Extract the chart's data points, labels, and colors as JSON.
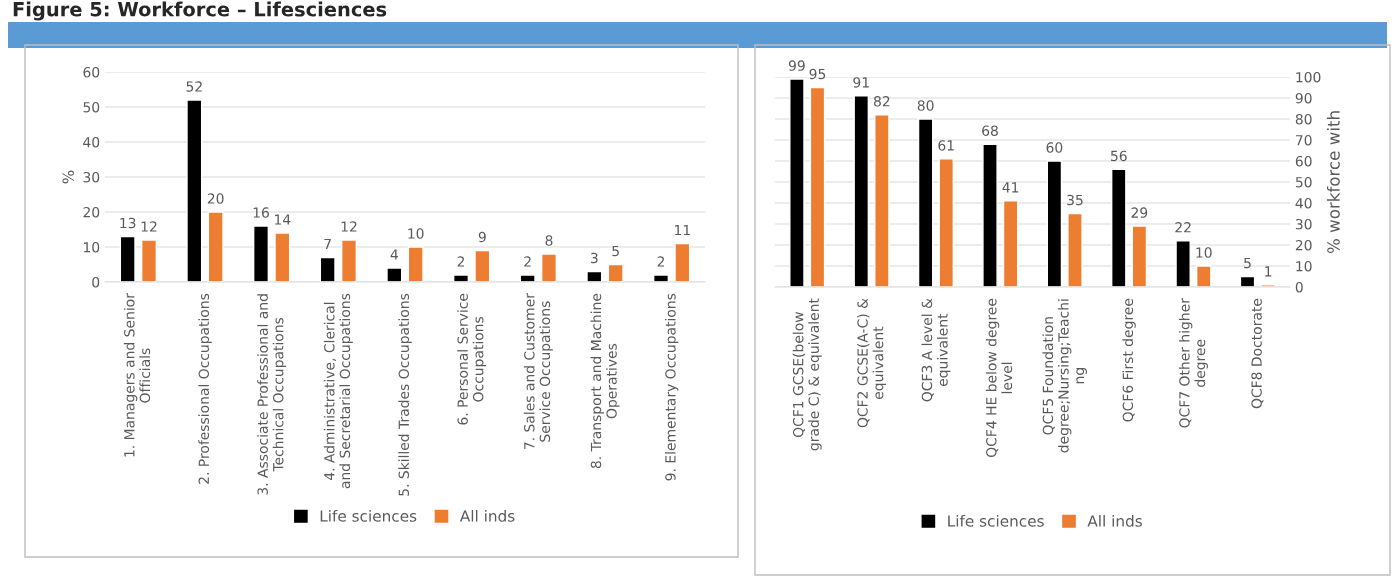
{
  "chart_data": [
    {
      "type": "bar",
      "title": "Figure 5: Workforce – Lifesciences",
      "ylabel": "%",
      "categories": [
        "1. Managers and Senior\nOfficials",
        "2. Professional Occupations",
        "3. Associate Professional and\nTechnical Occupations",
        "4. Administrative, Clerical\nand Secretarial Occupations",
        "5. Skilled Trades Occupations",
        "6. Personal Service\nOccupations",
        "7. Sales and Customer\nService Occupations",
        "8. Transport and Machine\nOperatives",
        "9. Elementary Occupations"
      ],
      "series": [
        {
          "name": "Life sciences",
          "color": "#000000",
          "values": [
            13,
            52,
            16,
            7,
            4,
            2,
            2,
            3,
            2
          ]
        },
        {
          "name": "All inds",
          "color": "#ed7d31",
          "values": [
            12,
            20,
            14,
            12,
            10,
            9,
            8,
            5,
            11
          ]
        }
      ],
      "ylim": [
        0,
        60
      ],
      "yticks": [
        0,
        10,
        20,
        30,
        40,
        50,
        60
      ],
      "grid": "y",
      "legend": "bottom",
      "data_labels": true
    },
    {
      "type": "bar",
      "y2label": "% workforce with",
      "categories": [
        "QCF1 GCSE(below\ngrade C) & equivalent",
        "QCF2 GCSE(A-C) &\nequivalent",
        "QCF3 A level &\nequivalent",
        "QCF4 HE below degree\nlevel",
        "QCF5 Foundation\ndegree;Nursing;Teachi\nng",
        "QCF6 First degree",
        "QCF7 Other higher\ndegree",
        "QCF8 Doctorate"
      ],
      "series": [
        {
          "name": "Life sciences",
          "color": "#000000",
          "axis": "y2",
          "values": [
            99,
            91,
            80,
            68,
            60,
            56,
            22,
            5
          ]
        },
        {
          "name": "All inds",
          "color": "#ed7d31",
          "axis": "y2",
          "values": [
            95,
            82,
            61,
            41,
            35,
            29,
            10,
            1
          ]
        }
      ],
      "y2lim": [
        0,
        100
      ],
      "y2ticks": [
        0,
        10,
        20,
        30,
        40,
        50,
        60,
        70,
        80,
        90,
        100
      ],
      "grid": "y",
      "legend": "bottom",
      "data_labels": true
    }
  ]
}
